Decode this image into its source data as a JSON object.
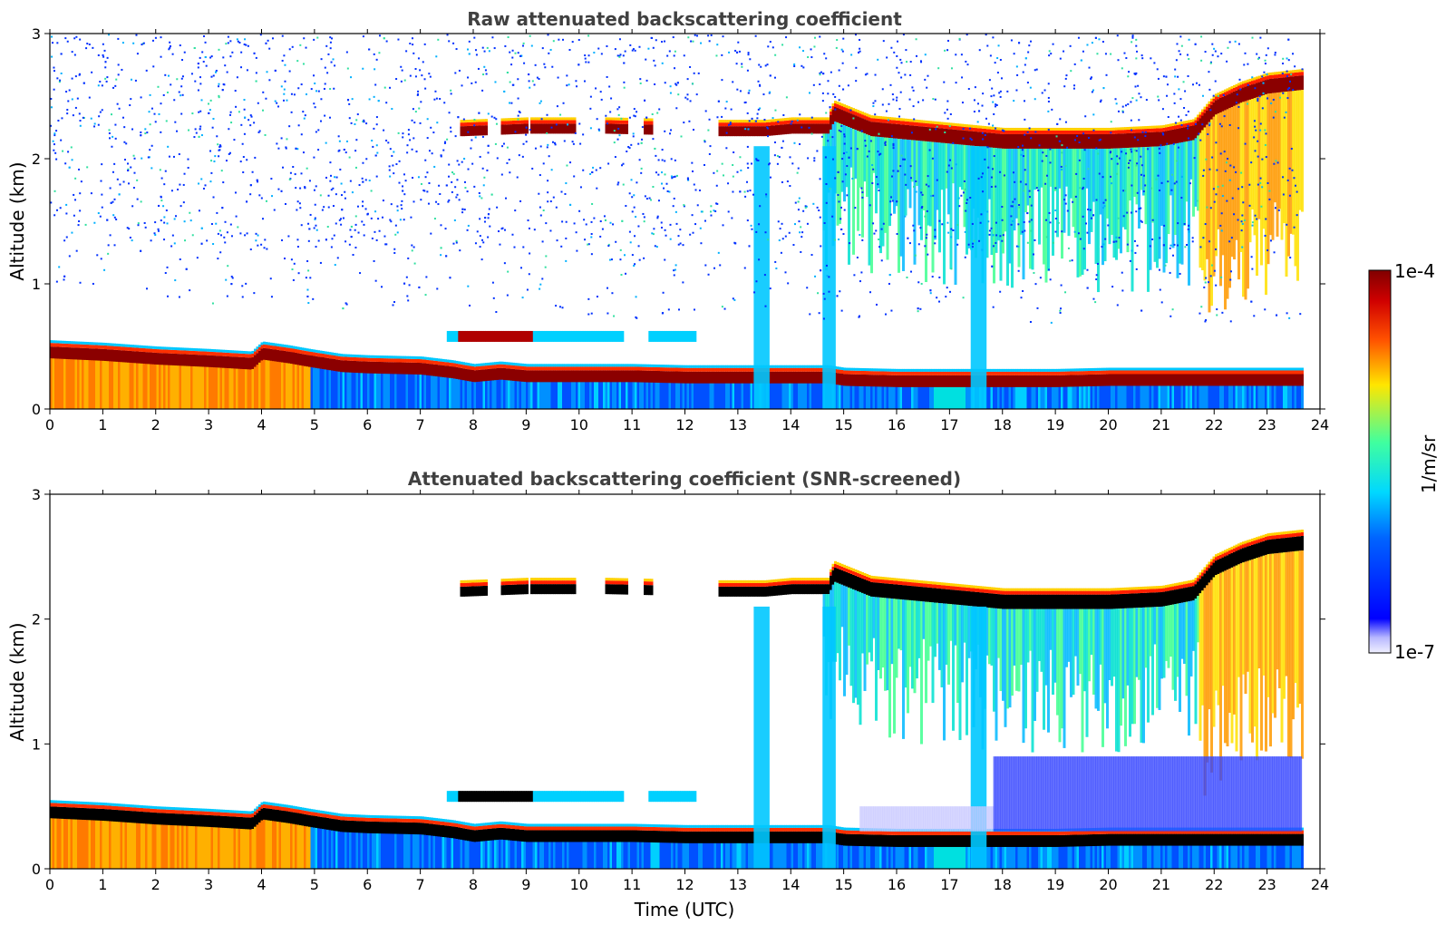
{
  "chart_data": [
    {
      "type": "heatmap",
      "title": "Raw attenuated backscattering coefficient",
      "xlabel": "",
      "ylabel": "Altitude (km)",
      "xlim": [
        0,
        24
      ],
      "ylim": [
        0,
        3
      ],
      "xticks": [
        "0",
        "1",
        "2",
        "3",
        "4",
        "5",
        "6",
        "7",
        "8",
        "9",
        "10",
        "11",
        "12",
        "13",
        "14",
        "15",
        "16",
        "17",
        "18",
        "19",
        "20",
        "21",
        "22",
        "23",
        "24"
      ],
      "yticks": [
        "0",
        "1",
        "2",
        "3"
      ],
      "grid": false,
      "data_extent_hours": [
        0,
        23.65
      ],
      "boundary_layer_top_km": {
        "t": [
          0,
          1,
          2,
          3,
          3.8,
          4,
          4.5,
          4.9,
          5.5,
          6,
          7,
          7.6,
          8,
          8.5,
          9,
          10,
          11,
          12,
          13,
          14,
          14.7,
          15,
          16,
          17,
          18,
          19,
          20,
          21,
          22,
          23,
          23.65
        ],
        "z": [
          0.47,
          0.45,
          0.42,
          0.4,
          0.38,
          0.46,
          0.43,
          0.4,
          0.36,
          0.35,
          0.34,
          0.31,
          0.28,
          0.3,
          0.28,
          0.28,
          0.28,
          0.27,
          0.27,
          0.27,
          0.27,
          0.25,
          0.24,
          0.24,
          0.24,
          0.24,
          0.25,
          0.25,
          0.25,
          0.25,
          0.25
        ]
      },
      "upper_cloud_base_km": {
        "t": [
          7.8,
          9,
          10.5,
          12.6,
          13.5,
          14,
          14.7,
          14.8,
          15.5,
          17,
          18,
          19,
          20,
          21,
          21.6,
          22,
          22.5,
          23,
          23.65
        ],
        "z": [
          2.18,
          2.2,
          2.2,
          2.18,
          2.18,
          2.2,
          2.2,
          2.3,
          2.18,
          2.12,
          2.08,
          2.08,
          2.08,
          2.1,
          2.15,
          2.35,
          2.45,
          2.52,
          2.55
        ]
      },
      "colormap": "jet",
      "colorbar_range": [
        "1e-7",
        "1e-4"
      ],
      "colorbar_label": "1/m/sr"
    },
    {
      "type": "heatmap",
      "title": "Attenuated backscattering coefficient (SNR-screened)",
      "xlabel": "Time (UTC)",
      "ylabel": "Altitude (km)",
      "xlim": [
        0,
        24
      ],
      "ylim": [
        0,
        3
      ],
      "xticks": [
        "0",
        "1",
        "2",
        "3",
        "4",
        "5",
        "6",
        "7",
        "8",
        "9",
        "10",
        "11",
        "12",
        "13",
        "14",
        "15",
        "16",
        "17",
        "18",
        "19",
        "20",
        "21",
        "22",
        "23",
        "24"
      ],
      "yticks": [
        "0",
        "1",
        "2",
        "3"
      ],
      "grid": false,
      "data_extent_hours": [
        0,
        23.65
      ],
      "colormap": "jet",
      "saturated_color": "#000000"
    }
  ],
  "colorbar": {
    "label": "1/m/sr",
    "max_label": "1e-4",
    "min_label": "1e-7"
  },
  "colors": {
    "white": "#ffffff",
    "light_blue_noise": "#2a3cff",
    "cyan": "#00e0ff",
    "yellow": "#ffe600",
    "dark_red": "#8b0000",
    "black": "#000000"
  }
}
